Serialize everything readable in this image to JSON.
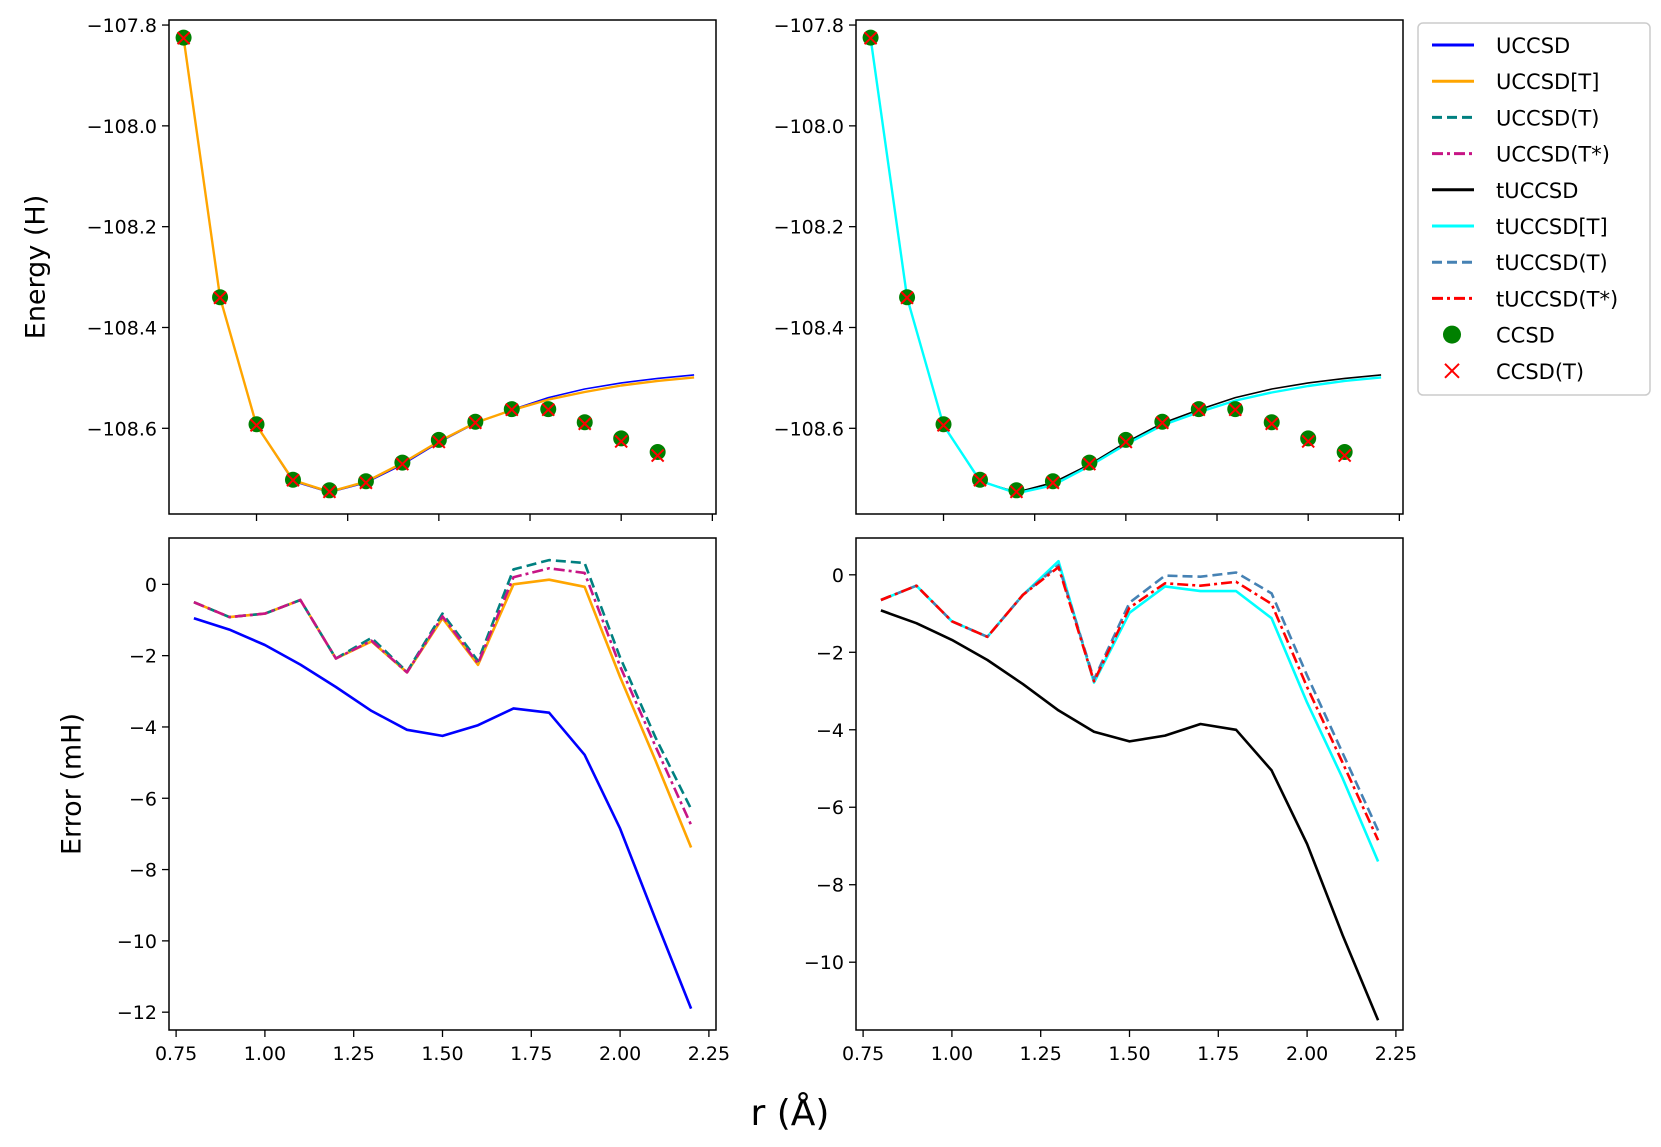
{
  "figure": {
    "supxlabel": "r (Å)"
  },
  "legend": {
    "placement": "outside-right-top",
    "entries": [
      {
        "label": "UCCSD",
        "color": "#0000ff",
        "style": "solid",
        "marker": "line"
      },
      {
        "label": "UCCSD[T]",
        "color": "#ffa500",
        "style": "solid",
        "marker": "line"
      },
      {
        "label": "UCCSD(T)",
        "color": "#008080",
        "style": "dashed",
        "marker": "line"
      },
      {
        "label": "UCCSD(T*)",
        "color": "#c71585",
        "style": "dashdot",
        "marker": "line"
      },
      {
        "label": "tUCCSD",
        "color": "#000000",
        "style": "solid",
        "marker": "line"
      },
      {
        "label": "tUCCSD[T]",
        "color": "#00ffff",
        "style": "solid",
        "marker": "line"
      },
      {
        "label": "tUCCSD(T)",
        "color": "#4682b4",
        "style": "dashed",
        "marker": "line"
      },
      {
        "label": "tUCCSD(T*)",
        "color": "#ff0000",
        "style": "dashdot",
        "marker": "line"
      },
      {
        "label": "CCSD",
        "color": "#008000",
        "style": "none",
        "marker": "circle"
      },
      {
        "label": "CCSD(T)",
        "color": "#ff0000",
        "style": "none",
        "marker": "x"
      }
    ]
  },
  "chart_data": [
    {
      "type": "line",
      "panel": "top-left",
      "xlabel": "",
      "ylabel": "Energy (H)",
      "xlim": [
        0.76,
        2.26
      ],
      "ylim": [
        -108.77,
        -107.79
      ],
      "xticks": [],
      "yticks": [
        -107.8,
        -108.0,
        -108.2,
        -108.4,
        -108.6
      ],
      "ytick_labels": [
        "−107.8",
        "−108.0",
        "−108.2",
        "−108.4",
        "−108.6"
      ],
      "series": [
        {
          "name": "UCCSD",
          "color": "#0000ff",
          "style": "solid",
          "width": 1.6,
          "x": [
            0.8,
            0.9,
            1.0,
            1.1,
            1.2,
            1.3,
            1.4,
            1.5,
            1.6,
            1.7,
            1.8,
            1.9,
            2.0,
            2.1,
            2.2
          ],
          "y": [
            -107.826,
            -108.341,
            -108.594,
            -108.705,
            -108.727,
            -108.708,
            -108.672,
            -108.628,
            -108.59,
            -108.563,
            -108.539,
            -108.522,
            -108.51,
            -108.501,
            -108.494
          ]
        },
        {
          "name": "UCCSD[T]",
          "color": "#ffa500",
          "style": "solid",
          "width": 2.4,
          "x": [
            0.8,
            0.9,
            1.0,
            1.1,
            1.2,
            1.3,
            1.4,
            1.5,
            1.6,
            1.7,
            1.8,
            1.9,
            2.0,
            2.1,
            2.2
          ],
          "y": [
            -107.826,
            -108.341,
            -108.594,
            -108.703,
            -108.726,
            -108.706,
            -108.669,
            -108.626,
            -108.589,
            -108.564,
            -108.543,
            -108.528,
            -108.515,
            -108.506,
            -108.499
          ]
        },
        {
          "name": "CCSD",
          "color": "#008000",
          "marker": "circle",
          "x": [
            0.8,
            0.9,
            1.0,
            1.1,
            1.2,
            1.3,
            1.4,
            1.5,
            1.6,
            1.7,
            1.8,
            1.9,
            2.0,
            2.1
          ],
          "y": [
            -107.825,
            -108.34,
            -108.592,
            -108.702,
            -108.723,
            -108.705,
            -108.668,
            -108.623,
            -108.587,
            -108.562,
            -108.562,
            -108.588,
            -108.62,
            -108.647
          ]
        },
        {
          "name": "CCSD(T)",
          "color": "#ff0000",
          "marker": "x",
          "x": [
            0.8,
            0.9,
            1.0,
            1.1,
            1.2,
            1.3,
            1.4,
            1.5,
            1.6,
            1.7,
            1.8,
            1.9,
            2.0,
            2.1
          ],
          "y": [
            -107.826,
            -108.341,
            -108.594,
            -108.703,
            -108.726,
            -108.708,
            -108.671,
            -108.627,
            -108.589,
            -108.563,
            -108.563,
            -108.591,
            -108.626,
            -108.654
          ]
        }
      ]
    },
    {
      "type": "line",
      "panel": "top-right",
      "xlabel": "",
      "ylabel": "",
      "xlim": [
        0.76,
        2.26
      ],
      "ylim": [
        -108.77,
        -107.79
      ],
      "xticks": [],
      "yticks": [
        -107.8,
        -108.0,
        -108.2,
        -108.4,
        -108.6
      ],
      "ytick_labels": [
        "−107.8",
        "−108.0",
        "−108.2",
        "−108.4",
        "−108.6"
      ],
      "series": [
        {
          "name": "tUCCSD",
          "color": "#000000",
          "style": "solid",
          "width": 1.6,
          "x": [
            0.8,
            0.9,
            1.0,
            1.1,
            1.2,
            1.3,
            1.4,
            1.5,
            1.6,
            1.7,
            1.8,
            1.9,
            2.0,
            2.1,
            2.2
          ],
          "y": [
            -107.826,
            -108.341,
            -108.594,
            -108.705,
            -108.727,
            -108.708,
            -108.672,
            -108.628,
            -108.59,
            -108.563,
            -108.539,
            -108.522,
            -108.51,
            -108.501,
            -108.494
          ]
        },
        {
          "name": "tUCCSD[T]",
          "color": "#00ffff",
          "style": "solid",
          "width": 2.4,
          "x": [
            0.8,
            0.9,
            1.0,
            1.1,
            1.2,
            1.3,
            1.4,
            1.5,
            1.6,
            1.7,
            1.8,
            1.9,
            2.0,
            2.1,
            2.2
          ],
          "y": [
            -107.826,
            -108.341,
            -108.594,
            -108.704,
            -108.729,
            -108.713,
            -108.675,
            -108.632,
            -108.594,
            -108.568,
            -108.545,
            -108.529,
            -108.516,
            -108.506,
            -108.499
          ]
        },
        {
          "name": "CCSD",
          "color": "#008000",
          "marker": "circle",
          "x": [
            0.8,
            0.9,
            1.0,
            1.1,
            1.2,
            1.3,
            1.4,
            1.5,
            1.6,
            1.7,
            1.8,
            1.9,
            2.0,
            2.1
          ],
          "y": [
            -107.825,
            -108.34,
            -108.592,
            -108.702,
            -108.723,
            -108.705,
            -108.668,
            -108.623,
            -108.587,
            -108.562,
            -108.562,
            -108.588,
            -108.62,
            -108.647
          ]
        },
        {
          "name": "CCSD(T)",
          "color": "#ff0000",
          "marker": "x",
          "x": [
            0.8,
            0.9,
            1.0,
            1.1,
            1.2,
            1.3,
            1.4,
            1.5,
            1.6,
            1.7,
            1.8,
            1.9,
            2.0,
            2.1
          ],
          "y": [
            -107.826,
            -108.341,
            -108.594,
            -108.703,
            -108.726,
            -108.708,
            -108.671,
            -108.627,
            -108.589,
            -108.563,
            -108.563,
            -108.591,
            -108.626,
            -108.654
          ]
        }
      ]
    },
    {
      "type": "line",
      "panel": "bottom-left",
      "xlabel": "",
      "ylabel": "Error (mH)",
      "xlim": [
        0.73,
        2.27
      ],
      "ylim": [
        -12.5,
        1.3
      ],
      "xticks": [
        0.75,
        1.0,
        1.25,
        1.5,
        1.75,
        2.0,
        2.25
      ],
      "xtick_labels": [
        "0.75",
        "1.00",
        "1.25",
        "1.50",
        "1.75",
        "2.00",
        "2.25"
      ],
      "yticks": [
        0,
        -2,
        -4,
        -6,
        -8,
        -10,
        -12
      ],
      "ytick_labels": [
        "0",
        "−2",
        "−4",
        "−6",
        "−8",
        "−10",
        "−12"
      ],
      "series": [
        {
          "name": "UCCSD",
          "color": "#0000ff",
          "style": "solid",
          "width": 2.6,
          "x": [
            0.8,
            0.9,
            1.0,
            1.1,
            1.2,
            1.3,
            1.4,
            1.5,
            1.6,
            1.7,
            1.8,
            1.9,
            2.0,
            2.1,
            2.2
          ],
          "y": [
            -0.95,
            -1.27,
            -1.7,
            -2.25,
            -2.88,
            -3.55,
            -4.08,
            -4.25,
            -3.95,
            -3.48,
            -3.6,
            -4.78,
            -6.85,
            -9.4,
            -11.9
          ]
        },
        {
          "name": "UCCSD[T]",
          "color": "#ffa500",
          "style": "solid",
          "width": 2.6,
          "x": [
            0.8,
            0.9,
            1.0,
            1.1,
            1.2,
            1.3,
            1.4,
            1.5,
            1.6,
            1.7,
            1.8,
            1.9,
            2.0,
            2.1,
            2.2
          ],
          "y": [
            -0.5,
            -0.92,
            -0.82,
            -0.44,
            -2.08,
            -1.6,
            -2.47,
            -0.95,
            -2.26,
            0.0,
            0.13,
            -0.07,
            -2.6,
            -4.95,
            -7.38
          ]
        },
        {
          "name": "UCCSD(T)",
          "color": "#008080",
          "style": "dashed",
          "width": 2.6,
          "x": [
            0.8,
            0.9,
            1.0,
            1.1,
            1.2,
            1.3,
            1.4,
            1.5,
            1.6,
            1.7,
            1.8,
            1.9,
            2.0,
            2.1,
            2.2
          ],
          "y": [
            -0.5,
            -0.92,
            -0.82,
            -0.44,
            -2.08,
            -1.5,
            -2.45,
            -0.82,
            -2.15,
            0.42,
            0.68,
            0.6,
            -2.05,
            -4.3,
            -6.3
          ]
        },
        {
          "name": "UCCSD(T*)",
          "color": "#c71585",
          "style": "dashdot",
          "width": 2.6,
          "x": [
            0.8,
            0.9,
            1.0,
            1.1,
            1.2,
            1.3,
            1.4,
            1.5,
            1.6,
            1.7,
            1.8,
            1.9,
            2.0,
            2.1,
            2.2
          ],
          "y": [
            -0.5,
            -0.92,
            -0.82,
            -0.44,
            -2.08,
            -1.58,
            -2.47,
            -0.9,
            -2.22,
            0.2,
            0.45,
            0.32,
            -2.3,
            -4.55,
            -6.75
          ]
        }
      ]
    },
    {
      "type": "line",
      "panel": "bottom-right",
      "xlabel": "",
      "ylabel": "",
      "xlim": [
        0.73,
        2.27
      ],
      "ylim": [
        -11.75,
        0.95
      ],
      "xticks": [
        0.75,
        1.0,
        1.25,
        1.5,
        1.75,
        2.0,
        2.25
      ],
      "xtick_labels": [
        "0.75",
        "1.00",
        "1.25",
        "1.50",
        "1.75",
        "2.00",
        "2.25"
      ],
      "yticks": [
        0,
        -2,
        -4,
        -6,
        -8,
        -10
      ],
      "ytick_labels": [
        "0",
        "−2",
        "−4",
        "−6",
        "−8",
        "−10"
      ],
      "series": [
        {
          "name": "tUCCSD",
          "color": "#000000",
          "style": "solid",
          "width": 2.6,
          "x": [
            0.8,
            0.9,
            1.0,
            1.1,
            1.2,
            1.3,
            1.4,
            1.5,
            1.6,
            1.7,
            1.8,
            1.9,
            2.0,
            2.1,
            2.2
          ],
          "y": [
            -0.92,
            -1.25,
            -1.68,
            -2.2,
            -2.82,
            -3.5,
            -4.05,
            -4.3,
            -4.15,
            -3.85,
            -4.0,
            -5.05,
            -6.95,
            -9.3,
            -11.5
          ]
        },
        {
          "name": "tUCCSD[T]",
          "color": "#00ffff",
          "style": "solid",
          "width": 2.6,
          "x": [
            0.8,
            0.9,
            1.0,
            1.1,
            1.2,
            1.3,
            1.4,
            1.5,
            1.6,
            1.7,
            1.8,
            1.9,
            2.0,
            2.1,
            2.2
          ],
          "y": [
            -0.65,
            -0.28,
            -1.2,
            -1.6,
            -0.52,
            0.35,
            -2.78,
            -0.98,
            -0.3,
            -0.42,
            -0.42,
            -1.12,
            -3.3,
            -5.25,
            -7.4
          ]
        },
        {
          "name": "tUCCSD(T)",
          "color": "#4682b4",
          "style": "dashed",
          "width": 2.6,
          "x": [
            0.8,
            0.9,
            1.0,
            1.1,
            1.2,
            1.3,
            1.4,
            1.5,
            1.6,
            1.7,
            1.8,
            1.9,
            2.0,
            2.1,
            2.2
          ],
          "y": [
            -0.65,
            -0.28,
            -1.2,
            -1.6,
            -0.52,
            0.25,
            -2.7,
            -0.72,
            -0.02,
            -0.05,
            0.06,
            -0.48,
            -2.6,
            -4.6,
            -6.6
          ]
        },
        {
          "name": "tUCCSD(T*)",
          "color": "#ff0000",
          "style": "dashdot",
          "width": 2.6,
          "x": [
            0.8,
            0.9,
            1.0,
            1.1,
            1.2,
            1.3,
            1.4,
            1.5,
            1.6,
            1.7,
            1.8,
            1.9,
            2.0,
            2.1,
            2.2
          ],
          "y": [
            -0.65,
            -0.28,
            -1.2,
            -1.6,
            -0.52,
            0.2,
            -2.75,
            -0.85,
            -0.22,
            -0.28,
            -0.18,
            -0.75,
            -2.9,
            -4.85,
            -6.85
          ]
        }
      ]
    }
  ]
}
